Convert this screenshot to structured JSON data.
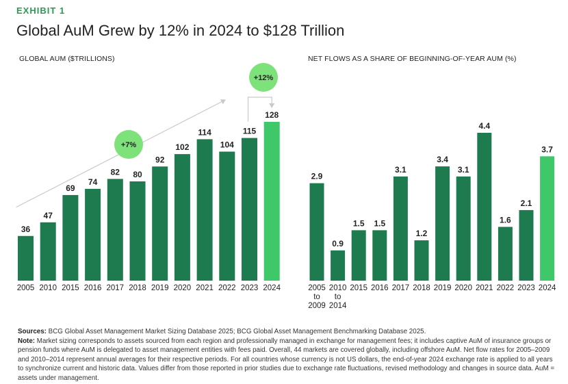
{
  "exhibit_label": "EXHIBIT 1",
  "title": "Global AuM Grew by 12% in 2024 to $128 Trillion",
  "colors": {
    "bar": "#1e7a4f",
    "highlight": "#3ec86a",
    "bubble": "#7de27a",
    "arrow": "#c9c9c9",
    "label": "#222222",
    "exhibit": "#2a9a52"
  },
  "chart_data": [
    {
      "type": "bar",
      "title": "GLOBAL AUM ($TRILLIONS)",
      "categories": [
        "2005",
        "2010",
        "2015",
        "2016",
        "2017",
        "2018",
        "2019",
        "2020",
        "2021",
        "2022",
        "2023",
        "2024"
      ],
      "values": [
        36,
        47,
        69,
        74,
        82,
        80,
        92,
        102,
        114,
        104,
        115,
        128
      ],
      "ylim": [
        0,
        128
      ],
      "highlight_index": 11,
      "annotations": [
        {
          "text": "+7%",
          "type": "trend-arrow",
          "from_category": "2005",
          "to_category": "2021"
        },
        {
          "text": "+12%",
          "type": "year-over-year",
          "from_category": "2023",
          "to_category": "2024"
        }
      ]
    },
    {
      "type": "bar",
      "title": "NET FLOWS AS A SHARE OF BEGINNING-OF-YEAR AUM (%)",
      "categories": [
        "2005\nto\n2009",
        "2010\nto\n2014",
        "2015",
        "2016",
        "2017",
        "2018",
        "2019",
        "2020",
        "2021",
        "2022",
        "2023",
        "2024"
      ],
      "values": [
        2.9,
        0.9,
        1.5,
        1.5,
        3.1,
        1.2,
        3.4,
        3.1,
        4.4,
        1.6,
        2.1,
        3.7
      ],
      "value_labels": [
        "2.9",
        "0.9",
        "1.5",
        "1.5",
        "3.1",
        "1.2",
        "3.4",
        "3.1",
        "4.4",
        "1.6",
        "2.1",
        "3.7"
      ],
      "ylim": [
        0,
        4.4
      ],
      "highlight_index": 11
    }
  ],
  "footer": {
    "sources_label": "Sources:",
    "sources_text": "BCG Global Asset Management Market Sizing Database 2025; BCG Global Asset Management Benchmarking Database 2025.",
    "note_label": "Note:",
    "note_text": "Market sizing corresponds to assets sourced from each region and professionally managed in exchange for management fees; it includes captive AuM of insurance groups or pension funds where AuM is delegated to asset management entities with fees paid. Overall, 44 markets are covered globally, including offshore AuM. Net flow rates for 2005–2009 and 2010–2014 represent annual averages for their respective periods. For all countries whose currency is not US dollars, the end-of-year 2024 exchange rate is applied to all years to synchronize current and historic data. Values differ from those reported in prior studies due to exchange rate fluctuations, revised methodology and changes in source data. AuM = assets under management."
  }
}
